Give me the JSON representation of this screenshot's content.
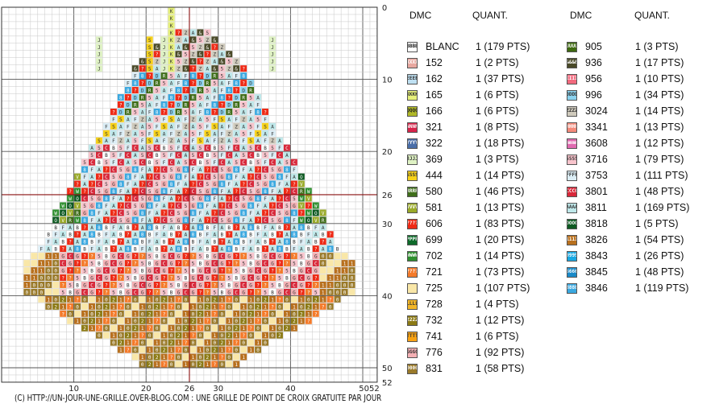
{
  "footer": "(C) HTTP://UN-JOUR-UNE-GRILLE.OVER-BLOG.COM : UNE GRILLE DE POINT DE CROIX GRATUITE PAR JOUR",
  "axis": {
    "top_ticks": [
      "0"
    ],
    "right_ticks": [
      "0",
      "10",
      "20",
      "26",
      "30",
      "40",
      "50",
      "52"
    ],
    "bottom_ticks": [
      "10",
      "20",
      "26",
      "30",
      "40",
      "50",
      "52"
    ]
  },
  "legend": {
    "header_code": "DMC",
    "header_qty": "QUANT.",
    "left": [
      {
        "code": "BLANC",
        "qty": "1 (179 PTS)",
        "sym": "BB",
        "bg": "#ffffff",
        "fg": "#222"
      },
      {
        "code": "152",
        "qty": "1 (2 PTS)",
        "sym": "XX",
        "bg": "#e8a8a0",
        "fg": "#fff"
      },
      {
        "code": "162",
        "qty": "1 (37 PTS)",
        "sym": "EE",
        "bg": "#bfe0f2",
        "fg": "#333"
      },
      {
        "code": "165",
        "qty": "1 (6 PTS)",
        "sym": "KK",
        "bg": "#e6f07a",
        "fg": "#333"
      },
      {
        "code": "166",
        "qty": "1 (6 PTS)",
        "sym": "QQ",
        "bg": "#b0b828",
        "fg": "#222"
      },
      {
        "code": "321",
        "qty": "1 (8 PTS)",
        "sym": "NN",
        "bg": "#d6244a",
        "fg": "#fff"
      },
      {
        "code": "322",
        "qty": "1 (18 PTS)",
        "sym": "YY",
        "bg": "#4a6ea8",
        "fg": "#fff"
      },
      {
        "code": "369",
        "qty": "1 (3 PTS)",
        "sym": "JJ",
        "bg": "#dff2c4",
        "fg": "#333"
      },
      {
        "code": "444",
        "qty": "1 (14 PTS)",
        "sym": "SS",
        "bg": "#f7d21a",
        "fg": "#333"
      },
      {
        "code": "580",
        "qty": "1 (46 PTS)",
        "sym": "RR",
        "bg": "#3f6e1a",
        "fg": "#fff"
      },
      {
        "code": "581",
        "qty": "1 (13 PTS)",
        "sym": "VV",
        "bg": "#9aaa2a",
        "fg": "#fff"
      },
      {
        "code": "606",
        "qty": "1 (83 PTS)",
        "sym": "??",
        "bg": "#ee2a16",
        "fg": "#fff"
      },
      {
        "code": "699",
        "qty": "1 (20 PTS)",
        "sym": "PP",
        "bg": "#0e6a2a",
        "fg": "#fff"
      },
      {
        "code": "702",
        "qty": "1 (14 PTS)",
        "sym": "WW",
        "bg": "#2e8e2e",
        "fg": "#fff"
      },
      {
        "code": "721",
        "qty": "1 (73 PTS)",
        "sym": "??",
        "bg": "#f47a2a",
        "fg": "#fff"
      },
      {
        "code": "725",
        "qty": "1 (107 PTS)",
        "sym": "  ",
        "bg": "#f9e7a8",
        "fg": "#333"
      },
      {
        "code": "728",
        "qty": "1 (4 PTS)",
        "sym": "LL",
        "bg": "#f2b628",
        "fg": "#333"
      },
      {
        "code": "732",
        "qty": "1 (12 PTS)",
        "sym": "22",
        "bg": "#8c7a14",
        "fg": "#fff"
      },
      {
        "code": "741",
        "qty": "1 (6 PTS)",
        "sym": "TT",
        "bg": "#f8a214",
        "fg": "#333"
      },
      {
        "code": "776",
        "qty": "1 (92 PTS)",
        "sym": "GG",
        "bg": "#f4b0b4",
        "fg": "#333"
      },
      {
        "code": "831",
        "qty": "1 (58 PTS)",
        "sym": "00",
        "bg": "#9a7a2a",
        "fg": "#fff"
      }
    ],
    "right": [
      {
        "code": "905",
        "qty": "1 (3 PTS)",
        "sym": "UU",
        "bg": "#3e6a10",
        "fg": "#fff"
      },
      {
        "code": "936",
        "qty": "1 (17 PTS)",
        "sym": "&&",
        "bg": "#4a4a28",
        "fg": "#fff"
      },
      {
        "code": "956",
        "qty": "1 (10 PTS)",
        "sym": "II",
        "bg": "#f26a7e",
        "fg": "#fff"
      },
      {
        "code": "996",
        "qty": "1 (34 PTS)",
        "sym": "DD",
        "bg": "#8ad2ee",
        "fg": "#333"
      },
      {
        "code": "3024",
        "qty": "1 (14 PTS)",
        "sym": "ZZ",
        "bg": "#cfcabc",
        "fg": "#333"
      },
      {
        "code": "3341",
        "qty": "1 (13 PTS)",
        "sym": "HH",
        "bg": "#f48a7a",
        "fg": "#fff"
      },
      {
        "code": "3608",
        "qty": "1 (12 PTS)",
        "sym": "mm",
        "bg": "#e06ab0",
        "fg": "#fff"
      },
      {
        "code": "3716",
        "qty": "1 (79 PTS)",
        "sym": "55",
        "bg": "#f8c4cc",
        "fg": "#333"
      },
      {
        "code": "3753",
        "qty": "1 (111 PTS)",
        "sym": "FF",
        "bg": "#dceef6",
        "fg": "#333"
      },
      {
        "code": "3801",
        "qty": "1 (48 PTS)",
        "sym": "CC",
        "bg": "#d8283a",
        "fg": "#fff"
      },
      {
        "code": "3811",
        "qty": "1 (169 PTS)",
        "sym": "AA",
        "bg": "#bfe8ea",
        "fg": "#333"
      },
      {
        "code": "3818",
        "qty": "1 (5 PTS)",
        "sym": "OO",
        "bg": "#0e5a22",
        "fg": "#fff"
      },
      {
        "code": "3826",
        "qty": "1 (54 PTS)",
        "sym": "11",
        "bg": "#b8701e",
        "fg": "#fff"
      },
      {
        "code": "3843",
        "qty": "1 (26 PTS)",
        "sym": "99",
        "bg": "#18a8e2",
        "fg": "#fff"
      },
      {
        "code": "3845",
        "qty": "1 (48 PTS)",
        "sym": "66",
        "bg": "#1a8ac8",
        "fg": "#fff"
      },
      {
        "code": "3846",
        "qty": "1 (119 PTS)",
        "sym": "88",
        "bg": "#3aa8e0",
        "fg": "#fff"
      }
    ]
  }
}
